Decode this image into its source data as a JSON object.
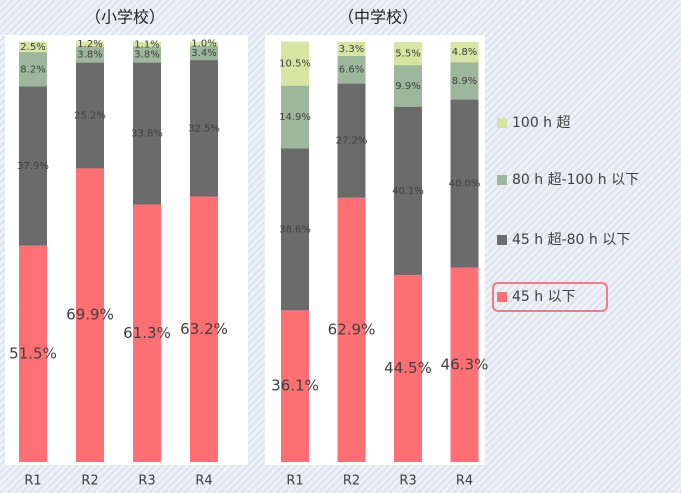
{
  "chart_data": [
    {
      "type": "bar",
      "stacked": true,
      "title": "（小学校）",
      "categories": [
        "R1",
        "R2",
        "R3",
        "R4"
      ],
      "ylim": [
        0,
        100
      ],
      "series": [
        {
          "values": [
            51.5,
            69.9,
            61.3,
            63.2
          ],
          "value_labels": [
            "51.5%",
            "69.9%",
            "61.3%",
            "63.2%"
          ]
        },
        {
          "values": [
            37.9,
            25.2,
            33.8,
            32.5
          ],
          "value_labels": [
            "37.9%",
            "25.2%",
            "33.8%",
            "32.5%"
          ]
        },
        {
          "values": [
            8.2,
            3.8,
            3.8,
            3.4
          ],
          "value_labels": [
            "8.2%",
            "3.8%",
            "3.8%",
            "3.4%"
          ]
        },
        {
          "values": [
            2.5,
            1.2,
            1.1,
            1.0
          ],
          "value_labels": [
            "2.5%",
            "1.2%",
            "1.1%",
            "1.0%"
          ]
        }
      ]
    },
    {
      "type": "bar",
      "stacked": true,
      "title": "（中学校）",
      "categories": [
        "R1",
        "R2",
        "R3",
        "R4"
      ],
      "ylim": [
        0,
        100
      ],
      "series": [
        {
          "values": [
            36.1,
            62.9,
            44.5,
            46.3
          ],
          "value_labels": [
            "36.1%",
            "62.9%",
            "44.5%",
            "46.3%"
          ]
        },
        {
          "values": [
            38.6,
            27.2,
            40.1,
            40.0
          ],
          "value_labels": [
            "38.6%",
            "27.2%",
            "40.1%",
            "40.0%"
          ]
        },
        {
          "values": [
            14.9,
            6.6,
            9.9,
            8.9
          ],
          "value_labels": [
            "14.9%",
            "6.6%",
            "9.9%",
            "8.9%"
          ]
        },
        {
          "values": [
            10.5,
            3.3,
            5.5,
            4.8
          ],
          "value_labels": [
            "10.5%",
            "3.3%",
            "5.5%",
            "4.8%"
          ]
        }
      ]
    }
  ],
  "legend": [
    {
      "name": "45 h 以下",
      "color": "#ff6f73"
    },
    {
      "name": "45 h 超-80 h 以下",
      "color": "#6b6b6b"
    },
    {
      "name": "80 h 超-100 h 以下",
      "color": "#9db79c"
    },
    {
      "name": "100 h 超",
      "color": "#d8e5a2"
    }
  ]
}
